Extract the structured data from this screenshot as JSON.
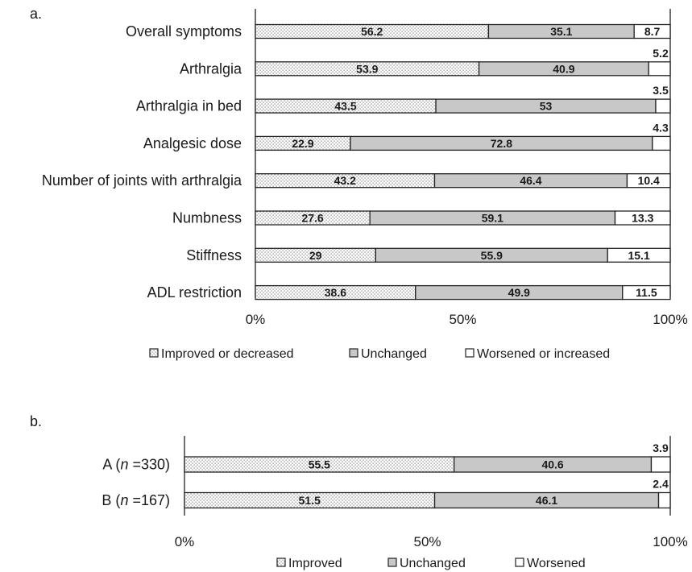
{
  "chart_data": [
    {
      "type": "bar",
      "stacked": true,
      "percent_axis": true,
      "panel_label": "a.",
      "categories": [
        "Overall symptoms",
        "Arthralgia",
        "Arthralgia in bed",
        "Analgesic dose",
        "Number of joints with arthralgia",
        "Numbness",
        "Stiffness",
        "ADL restriction"
      ],
      "series": [
        {
          "name": "Improved or decreased",
          "values": [
            56.2,
            53.9,
            43.5,
            22.9,
            43.2,
            27.6,
            29,
            38.6
          ],
          "pattern": "dotted",
          "color": "#ffffff"
        },
        {
          "name": "Unchanged",
          "values": [
            35.1,
            40.9,
            53,
            72.8,
            46.4,
            59.1,
            55.9,
            49.9
          ],
          "pattern": "solid",
          "color": "#c8c8c8"
        },
        {
          "name": "Worsened or increased",
          "values": [
            8.7,
            5.2,
            3.5,
            4.3,
            10.4,
            13.3,
            15.1,
            11.5
          ],
          "pattern": "solid",
          "color": "#ffffff"
        }
      ],
      "value_labels": [
        [
          "56.2",
          "35.1",
          "8.7"
        ],
        [
          "53.9",
          "40.9",
          "5.2"
        ],
        [
          "43.5",
          "53",
          "3.5"
        ],
        [
          "22.9",
          "72.8",
          "4.3"
        ],
        [
          "43.2",
          "46.4",
          "10.4"
        ],
        [
          "27.6",
          "59.1",
          "13.3"
        ],
        [
          "29",
          "55.9",
          "15.1"
        ],
        [
          "38.6",
          "49.9",
          "11.5"
        ]
      ],
      "xlim": [
        0,
        100
      ],
      "xticks": [
        "0%",
        "50%",
        "100%"
      ],
      "legend_position": "bottom",
      "grid": false
    },
    {
      "type": "bar",
      "stacked": true,
      "percent_axis": true,
      "panel_label": "b.",
      "categories": [
        {
          "prefix": "A (",
          "italic": "n",
          "suffix": " =330)"
        },
        {
          "prefix": "B (",
          "italic": "n",
          "suffix": " =167)"
        }
      ],
      "series": [
        {
          "name": "Improved",
          "values": [
            55.5,
            51.5
          ],
          "pattern": "dotted",
          "color": "#ffffff"
        },
        {
          "name": "Unchanged",
          "values": [
            40.6,
            46.1
          ],
          "pattern": "solid",
          "color": "#c8c8c8"
        },
        {
          "name": "Worsened",
          "values": [
            3.9,
            2.4
          ],
          "pattern": "solid",
          "color": "#ffffff"
        }
      ],
      "value_labels": [
        [
          "55.5",
          "40.6",
          "3.9"
        ],
        [
          "51.5",
          "46.1",
          "2.4"
        ]
      ],
      "xlim": [
        0,
        100
      ],
      "xticks": [
        "0%",
        "50%",
        "100%"
      ],
      "legend_position": "bottom",
      "grid": false
    }
  ]
}
